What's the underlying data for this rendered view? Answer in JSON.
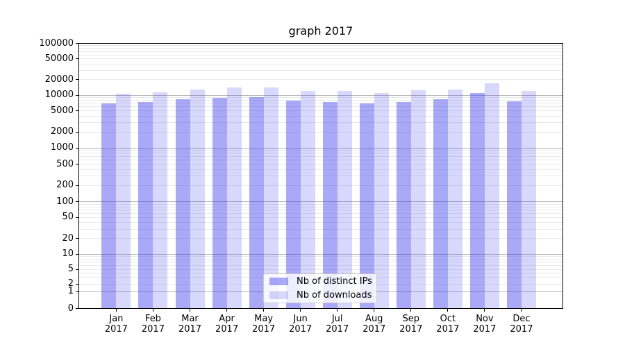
{
  "chart_data": {
    "type": "bar",
    "title": "graph 2017",
    "categories": [
      "Jan",
      "Feb",
      "Mar",
      "Apr",
      "May",
      "Jun",
      "Jul",
      "Aug",
      "Sep",
      "Oct",
      "Nov",
      "Dec"
    ],
    "category_year": "2017",
    "series": [
      {
        "name": "Nb of distinct IPs",
        "color": "rgba(60,60,240,0.44)",
        "values": [
          6900,
          7500,
          8300,
          8800,
          9000,
          7800,
          7400,
          7000,
          7500,
          8300,
          10900,
          7700
        ]
      },
      {
        "name": "Nb of downloads",
        "color": "rgba(60,60,240,0.20)",
        "values": [
          10700,
          11200,
          12800,
          13900,
          14100,
          12100,
          12100,
          11100,
          12300,
          12800,
          16900,
          12200
        ]
      }
    ],
    "y_scale": "symlog",
    "ylim": [
      0,
      100000
    ],
    "y_ticks": [
      0,
      1,
      2,
      5,
      10,
      20,
      50,
      100,
      200,
      500,
      1000,
      2000,
      5000,
      10000,
      20000,
      50000,
      100000
    ],
    "grid": {
      "on": true,
      "major_color": "#b3b3b3",
      "minor_color": "#e9e9e9",
      "major_values": [
        1,
        10,
        100,
        1000,
        10000
      ]
    },
    "legend": {
      "position": "lower-center"
    }
  }
}
